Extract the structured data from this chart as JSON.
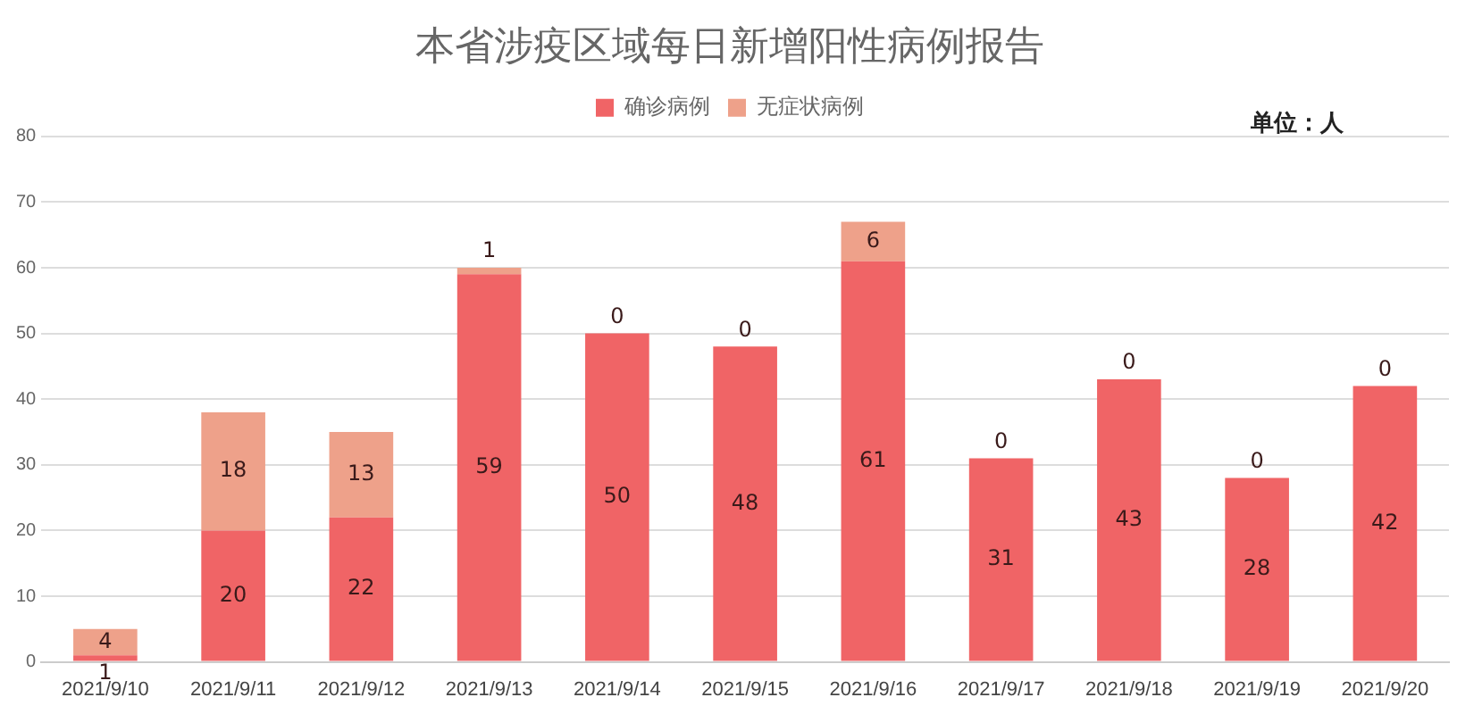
{
  "chart_data": {
    "type": "bar",
    "title": "本省涉疫区域每日新增阳性病例报告",
    "stacked": true,
    "legend": "top",
    "grid": "y",
    "data_labels": true,
    "categories": [
      "2021/9/10",
      "2021/9/11",
      "2021/9/12",
      "2021/9/13",
      "2021/9/14",
      "2021/9/15",
      "2021/9/16",
      "2021/9/17",
      "2021/9/18",
      "2021/9/19",
      "2021/9/20"
    ],
    "series": [
      {
        "name": "确诊病例",
        "color": "#f06466",
        "values": [
          1,
          20,
          22,
          59,
          50,
          48,
          61,
          31,
          43,
          28,
          42
        ]
      },
      {
        "name": "无症状病例",
        "color": "#eea18a",
        "values": [
          4,
          18,
          13,
          1,
          0,
          0,
          6,
          0,
          0,
          0,
          0
        ]
      }
    ],
    "ylim": [
      0,
      80
    ],
    "yticks": [
      0,
      10,
      20,
      30,
      40,
      50,
      60,
      70,
      80
    ],
    "annotations": [
      "单位：人"
    ]
  }
}
